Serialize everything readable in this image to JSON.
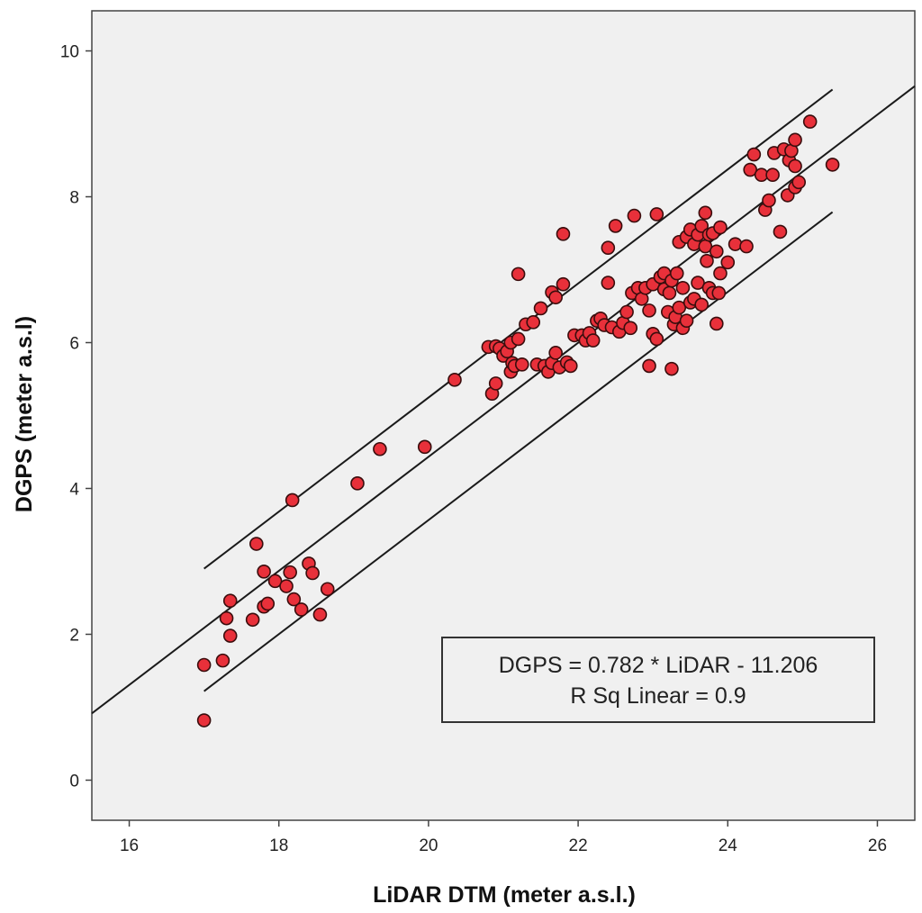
{
  "chart_data": {
    "type": "scatter",
    "title": "",
    "xlabel": "LiDAR DTM (meter a.s.l.)",
    "ylabel": "DGPS (meter a.s.l)",
    "xlim": [
      15.5,
      26.5
    ],
    "ylim": [
      -0.55,
      10.55
    ],
    "xticks": [
      16,
      18,
      20,
      22,
      24,
      26
    ],
    "yticks": [
      0,
      2,
      4,
      6,
      8,
      10
    ],
    "grid": false,
    "colors": {
      "plot_background": "#f0f0f0",
      "marker_fill": "#e8303a",
      "marker_edge": "#3a0d0d",
      "line": "#1a1a1a",
      "axis": "#444444"
    },
    "annotation": {
      "line1": "DGPS = 0.782 * LiDAR - 11.206",
      "line2": "R Sq Linear = 0.9",
      "position": "bottom-right"
    },
    "fit_line": {
      "slope": 0.782,
      "intercept": -11.206,
      "x_range": [
        15.5,
        26.5
      ]
    },
    "interval_lines": [
      {
        "name": "upper",
        "x": [
          17.0,
          25.4
        ],
        "y": [
          2.9,
          9.47
        ]
      },
      {
        "name": "lower",
        "x": [
          17.0,
          25.4
        ],
        "y": [
          1.22,
          7.79
        ]
      }
    ],
    "points": [
      [
        17.0,
        0.82
      ],
      [
        17.0,
        1.58
      ],
      [
        17.25,
        1.64
      ],
      [
        17.3,
        2.22
      ],
      [
        17.35,
        1.98
      ],
      [
        17.35,
        2.46
      ],
      [
        17.65,
        2.2
      ],
      [
        17.7,
        3.24
      ],
      [
        17.8,
        2.86
      ],
      [
        17.8,
        2.38
      ],
      [
        17.85,
        2.42
      ],
      [
        17.95,
        2.73
      ],
      [
        18.1,
        2.66
      ],
      [
        18.15,
        2.85
      ],
      [
        18.2,
        2.48
      ],
      [
        18.18,
        3.84
      ],
      [
        18.3,
        2.34
      ],
      [
        18.4,
        2.97
      ],
      [
        18.45,
        2.84
      ],
      [
        18.55,
        2.27
      ],
      [
        18.65,
        2.62
      ],
      [
        19.05,
        4.07
      ],
      [
        19.35,
        4.54
      ],
      [
        19.95,
        4.57
      ],
      [
        20.35,
        5.49
      ],
      [
        20.8,
        5.94
      ],
      [
        20.85,
        5.3
      ],
      [
        20.9,
        5.44
      ],
      [
        20.9,
        5.95
      ],
      [
        20.95,
        5.92
      ],
      [
        21.0,
        5.82
      ],
      [
        21.05,
        5.88
      ],
      [
        21.1,
        6.0
      ],
      [
        21.1,
        5.6
      ],
      [
        21.12,
        5.72
      ],
      [
        21.15,
        5.68
      ],
      [
        21.2,
        6.05
      ],
      [
        21.2,
        6.94
      ],
      [
        21.25,
        5.7
      ],
      [
        21.3,
        6.25
      ],
      [
        21.4,
        6.28
      ],
      [
        21.45,
        5.7
      ],
      [
        21.5,
        6.47
      ],
      [
        21.55,
        5.68
      ],
      [
        21.6,
        5.6
      ],
      [
        21.65,
        5.72
      ],
      [
        21.65,
        6.69
      ],
      [
        21.7,
        6.62
      ],
      [
        21.7,
        5.86
      ],
      [
        21.75,
        5.66
      ],
      [
        21.8,
        6.8
      ],
      [
        21.8,
        7.49
      ],
      [
        21.85,
        5.73
      ],
      [
        21.9,
        5.68
      ],
      [
        21.95,
        6.1
      ],
      [
        22.05,
        6.1
      ],
      [
        22.1,
        6.03
      ],
      [
        22.15,
        6.13
      ],
      [
        22.2,
        6.03
      ],
      [
        22.25,
        6.3
      ],
      [
        22.3,
        6.33
      ],
      [
        22.35,
        6.24
      ],
      [
        22.4,
        6.82
      ],
      [
        22.4,
        7.3
      ],
      [
        22.45,
        6.21
      ],
      [
        22.5,
        7.6
      ],
      [
        22.55,
        6.15
      ],
      [
        22.6,
        6.27
      ],
      [
        22.65,
        6.42
      ],
      [
        22.7,
        6.2
      ],
      [
        22.72,
        6.68
      ],
      [
        22.75,
        7.74
      ],
      [
        22.8,
        6.75
      ],
      [
        22.85,
        6.6
      ],
      [
        22.9,
        6.75
      ],
      [
        22.95,
        6.44
      ],
      [
        22.95,
        5.68
      ],
      [
        23.0,
        6.8
      ],
      [
        23.0,
        6.12
      ],
      [
        23.05,
        7.76
      ],
      [
        23.05,
        6.05
      ],
      [
        23.1,
        6.9
      ],
      [
        23.15,
        6.73
      ],
      [
        23.15,
        6.95
      ],
      [
        23.2,
        6.42
      ],
      [
        23.22,
        6.68
      ],
      [
        23.25,
        6.85
      ],
      [
        23.25,
        5.64
      ],
      [
        23.28,
        6.25
      ],
      [
        23.3,
        6.35
      ],
      [
        23.32,
        6.95
      ],
      [
        23.35,
        6.48
      ],
      [
        23.35,
        7.38
      ],
      [
        23.4,
        6.2
      ],
      [
        23.4,
        6.75
      ],
      [
        23.45,
        7.45
      ],
      [
        23.45,
        6.3
      ],
      [
        23.5,
        6.55
      ],
      [
        23.5,
        7.55
      ],
      [
        23.55,
        7.35
      ],
      [
        23.55,
        6.6
      ],
      [
        23.6,
        6.82
      ],
      [
        23.6,
        7.48
      ],
      [
        23.65,
        7.6
      ],
      [
        23.65,
        6.52
      ],
      [
        23.7,
        7.32
      ],
      [
        23.7,
        7.78
      ],
      [
        23.72,
        7.12
      ],
      [
        23.75,
        6.75
      ],
      [
        23.75,
        7.48
      ],
      [
        23.8,
        7.5
      ],
      [
        23.8,
        6.68
      ],
      [
        23.85,
        7.25
      ],
      [
        23.85,
        6.26
      ],
      [
        23.88,
        6.68
      ],
      [
        23.9,
        6.95
      ],
      [
        23.9,
        7.58
      ],
      [
        24.0,
        7.1
      ],
      [
        24.1,
        7.35
      ],
      [
        24.25,
        7.32
      ],
      [
        24.3,
        8.37
      ],
      [
        24.35,
        8.58
      ],
      [
        24.45,
        8.3
      ],
      [
        24.5,
        7.82
      ],
      [
        24.55,
        7.95
      ],
      [
        24.6,
        8.3
      ],
      [
        24.62,
        8.6
      ],
      [
        24.7,
        7.52
      ],
      [
        24.75,
        8.65
      ],
      [
        24.8,
        8.02
      ],
      [
        24.82,
        8.5
      ],
      [
        24.85,
        8.63
      ],
      [
        24.9,
        8.42
      ],
      [
        24.9,
        8.13
      ],
      [
        24.9,
        8.78
      ],
      [
        24.95,
        8.2
      ],
      [
        25.1,
        9.03
      ],
      [
        25.4,
        8.44
      ]
    ]
  }
}
